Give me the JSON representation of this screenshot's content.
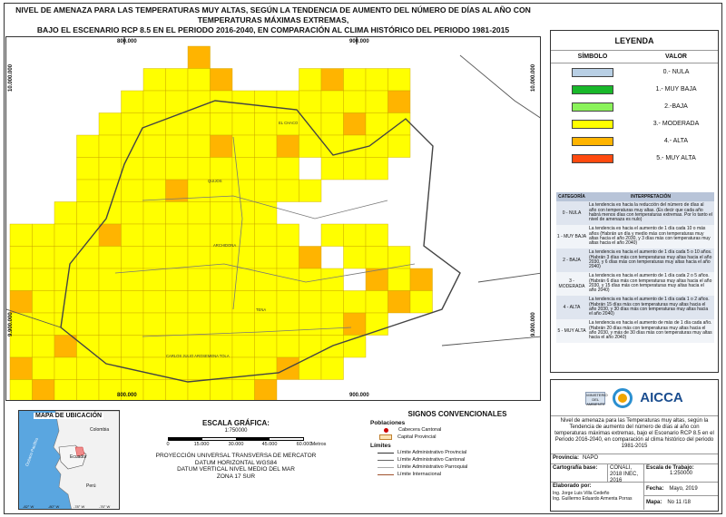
{
  "title": {
    "line1": "NIVEL DE AMENAZA PARA LAS TEMPERATURAS MUY ALTAS, SEGÚN LA TENDENCIA DE AUMENTO DEL NÚMERO DE DÍAS AL AÑO CON TEMPERATURAS MÁXIMAS EXTREMAS,",
    "line2": "BAJO EL ESCENARIO RCP 8.5 EN EL PERIODO 2016-2040, EN COMPARACIÓN AL CLIMA HISTÓRICO DEL PERIODO 1981-2015"
  },
  "map": {
    "coord_top_left": "800.000",
    "coord_top_right": "900.000",
    "coord_bottom_left": "800.000",
    "coord_bottom_right": "900.000",
    "coord_left_top": "10.000.000",
    "coord_left_bottom": "9.900.000",
    "coord_right_top": "10.000.000",
    "coord_right_bottom": "9.900.000",
    "places": [
      "EL CHACO",
      "QUIJOS",
      "ARCHIDONA",
      "TENA",
      "CARLOS JULIO AROSEMENA TOLA"
    ],
    "colors": {
      "moderada": "#ffff00",
      "alta": "#ffb400",
      "grid": "#c9a400",
      "limit": "#444444"
    }
  },
  "legend": {
    "title": "LEYENDA",
    "col_symbol": "SÍMBOLO",
    "col_value": "VALOR",
    "items": [
      {
        "label": "0.- NULA",
        "color": "#b8cfe4"
      },
      {
        "label": "1.- MUY BAJA",
        "color": "#19b82a"
      },
      {
        "label": "2.-BAJA",
        "color": "#8af25a"
      },
      {
        "label": "3.- MODERADA",
        "color": "#ffff00"
      },
      {
        "label": "4.- ALTA",
        "color": "#ffb400"
      },
      {
        "label": "5.- MUY ALTA",
        "color": "#ff4a0f"
      }
    ]
  },
  "interpretation": {
    "col_category": "CATEGORÍA",
    "col_text": "INTERPRETACIÓN",
    "rows": [
      {
        "category": "0 - NULA",
        "text": "La tendencia es hacia la reducción del número de días al año con temperaturas muy altas. (Es decir que cada año habrá menos días con temperaturas extremas. Por lo tanto el nivel de amenaza es nulo)"
      },
      {
        "category": "1 - MUY BAJA",
        "text": "La tendencia es hacia el aumento de 1 día cada 10 o más años (Habrán un día y medio más con temperaturas muy altas hacia el año 2030, y 3 días más con temperaturas muy altas hacia el año 2040)"
      },
      {
        "category": "2 - BAJA",
        "text": "La tendencia es hacia el aumento de 1 día cada 5 o 10 años. (Habrán 3 días más con temperaturas muy altas hacia el año 2030, y 6 días más con temperaturas muy altas hacia el año 2040)"
      },
      {
        "category": "3 - MODERADA",
        "text": "La tendencia es hacia el aumento de 1 día cada 2 o 5 años. (Habrán 6 días más con temperaturas muy altas hacia el año 2030, y 15 días más con temperaturas muy altas hacia el año 2040)"
      },
      {
        "category": "4 - ALTA",
        "text": "La tendencia es hacia el aumento de 1 día cada 1 o 2 años. (Habrán 15 días más con temperaturas muy altas hacia el año 2030, y 30 días más con temperaturas muy altas hacia el año 2040)"
      },
      {
        "category": "5 - MUY ALTA",
        "text": "La tendencia es hacia el aumento de más de 1 día cada año. (Habrán 20 días más con temperaturas muy altas hacia el año 2030, y más de 30 días más con temperaturas muy altas hacia el año 2040)"
      }
    ]
  },
  "info": {
    "logo_text": "AICCA",
    "ministry_text": "MINISTERIO DEL AMBIENTE",
    "description": "Nivel de amenaza para las Temperaturas muy altas, según la Tendencia de aumento del número de días al año con temperaturas máximas extremas, bajo el Escenario RCP 8.5 en el Periodo 2016-2040, en comparación al clima histórico del periodo 1981-2015",
    "province_label": "Provincia:",
    "province": "NAPO",
    "base_label": "Cartografía base:",
    "base_value": "CONALI, 2018 INEC, 2016",
    "scale_label": "Escala de Trabajo:",
    "scale_value": "1:250000",
    "made_label": "Elaborado por:",
    "author1": "Ing. Jorge Luis Villa Cedeño",
    "author2": "Ing. Guillermo Eduardo Armenta Porras",
    "date_label": "Fecha:",
    "date_value": "Mayo, 2019",
    "map_label": "Mapa:",
    "map_value": "No 11 /18"
  },
  "inset": {
    "title": "MAPA DE UBICACIÓN",
    "labels": [
      "Colombia",
      "Ecuador",
      "Perú",
      "Océano Pacífico"
    ],
    "lon_labels": [
      "-82° W",
      "-80° W",
      "-78° W",
      "-76° W"
    ]
  },
  "scale": {
    "title": "ESCALA GRÁFICA:",
    "ratio": "1:750000",
    "ticks": [
      "0",
      "15.000",
      "30.000",
      "45.000",
      "60.000"
    ],
    "unit": "Metros",
    "proj1": "PROYECCIÓN UNIVERSAL TRANSVERSA DE MERCATOR",
    "proj2": "DATUM HORIZONTAL WGS84",
    "proj3": "DATUM VERTICAL NIVEL MEDIO DEL MAR",
    "proj4": "ZONA 17 SUR"
  },
  "signs": {
    "title": "SIGNOS CONVENCIONALES",
    "pop_head": "Poblaciones",
    "pop1": "Cabecera Cantonal",
    "pop2": "Capital Provincial",
    "lim_head": "Límites",
    "lim1": "Límite Administrativo Provincial",
    "lim2": "Límite Administrativo Cantonal",
    "lim3": "Límite Administrativo Parroquial",
    "lim4": "Límite Internacional"
  }
}
